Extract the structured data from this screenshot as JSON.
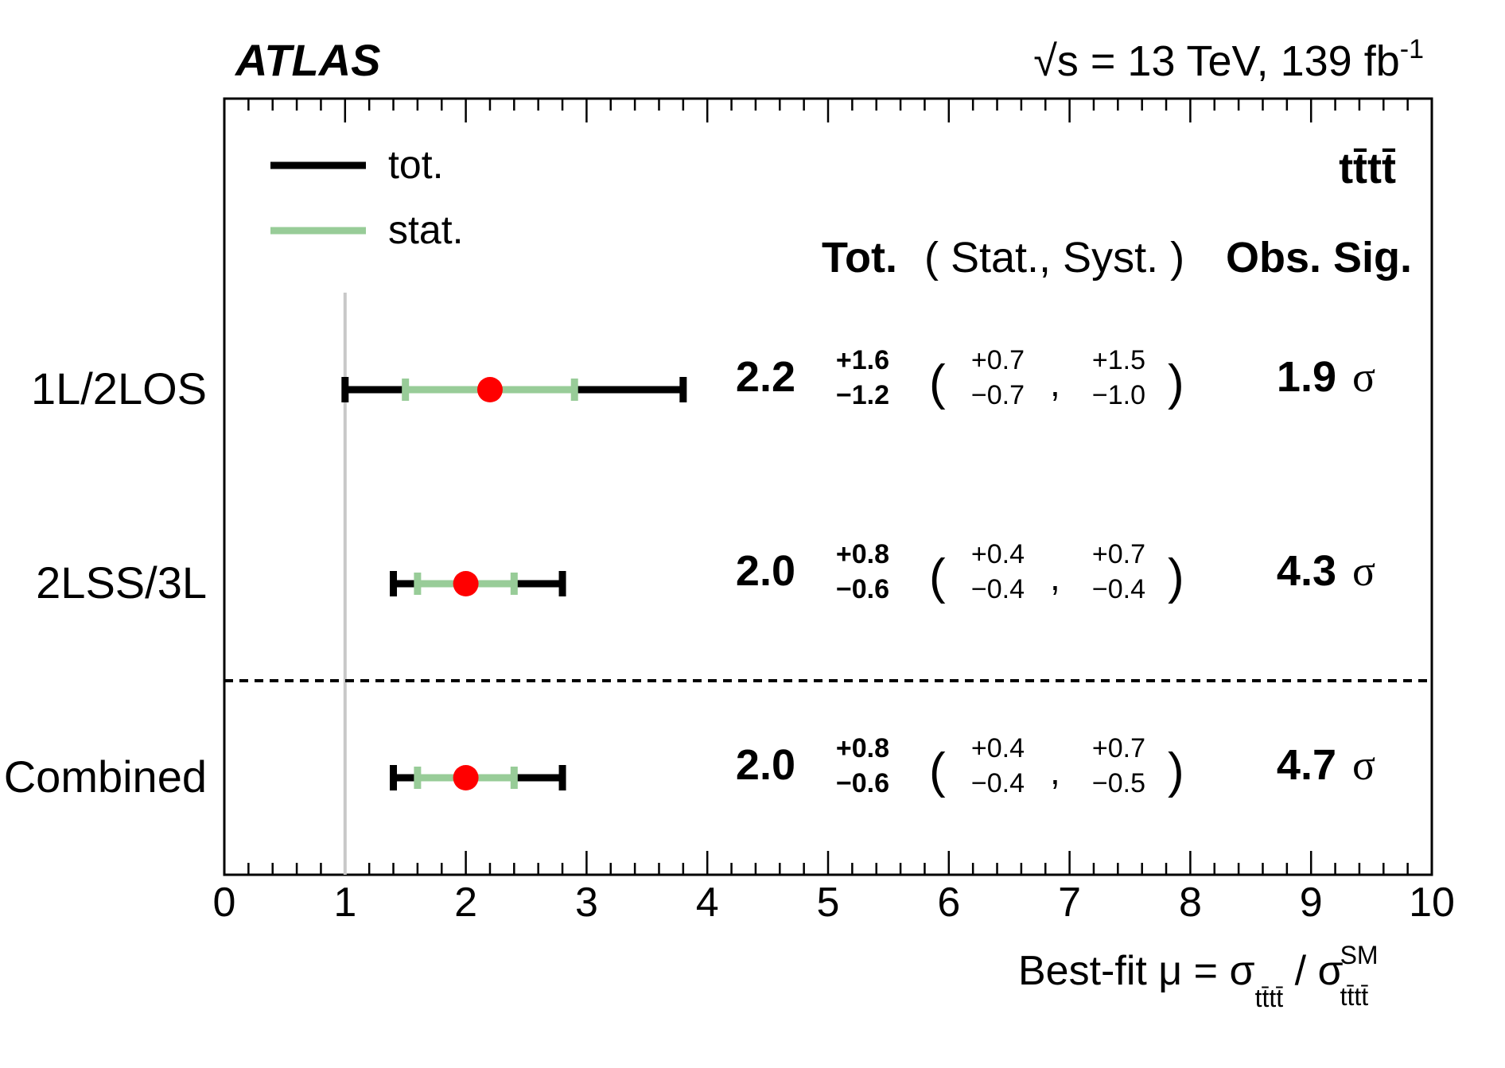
{
  "chart_data": {
    "type": "forest",
    "experiment": "ATLAS",
    "energy_label": "√s = 13 TeV, 139 fb",
    "energy_sup": "-1",
    "process": "tt̄tt̄",
    "legend": {
      "total": "tot.",
      "stat": "stat."
    },
    "column_headers": {
      "tot": "Tot.",
      "stat_syst": "( Stat., Syst. )",
      "sig": "Obs. Sig."
    },
    "sigma_symbol": "σ",
    "xlabel": {
      "prefix": "Best-fit μ = σ",
      "sub1": "tt̄tt̄",
      "slash": " / σ",
      "sup2": "SM",
      "sub2": "tt̄tt̄"
    },
    "xlim": [
      0,
      10
    ],
    "xticks": [
      "0",
      "1",
      "2",
      "3",
      "4",
      "5",
      "6",
      "7",
      "8",
      "9",
      "10"
    ],
    "sm_reference": 1,
    "colors": {
      "total": "#000000",
      "stat": "#98cc98",
      "point": "#ff0000",
      "reference": "#c8c8c8"
    },
    "rows": [
      {
        "label": "1L/2LOS",
        "mu": 2.2,
        "tot_up": 1.6,
        "tot_dn": 1.2,
        "stat_up": 0.7,
        "stat_dn": 0.7,
        "syst_up": 1.5,
        "syst_dn": 1.0,
        "mu_text": "2.2",
        "tot_up_text": "+1.6",
        "tot_dn_text": "−1.2",
        "stat_up_text": "+0.7",
        "stat_dn_text": "−0.7",
        "syst_up_text": "+1.5",
        "syst_dn_text": "−1.0",
        "sig_text": "1.9"
      },
      {
        "label": "2LSS/3L",
        "mu": 2.0,
        "tot_up": 0.8,
        "tot_dn": 0.6,
        "stat_up": 0.4,
        "stat_dn": 0.4,
        "syst_up": 0.7,
        "syst_dn": 0.4,
        "mu_text": "2.0",
        "tot_up_text": "+0.8",
        "tot_dn_text": "−0.6",
        "stat_up_text": "+0.4",
        "stat_dn_text": "−0.4",
        "syst_up_text": "+0.7",
        "syst_dn_text": "−0.4",
        "sig_text": "4.3"
      },
      {
        "label": "Combined",
        "mu": 2.0,
        "tot_up": 0.8,
        "tot_dn": 0.6,
        "stat_up": 0.4,
        "stat_dn": 0.4,
        "syst_up": 0.7,
        "syst_dn": 0.5,
        "mu_text": "2.0",
        "tot_up_text": "+0.8",
        "tot_dn_text": "−0.6",
        "stat_up_text": "+0.4",
        "stat_dn_text": "−0.4",
        "syst_up_text": "+0.7",
        "syst_dn_text": "−0.5",
        "sig_text": "4.7"
      }
    ]
  }
}
